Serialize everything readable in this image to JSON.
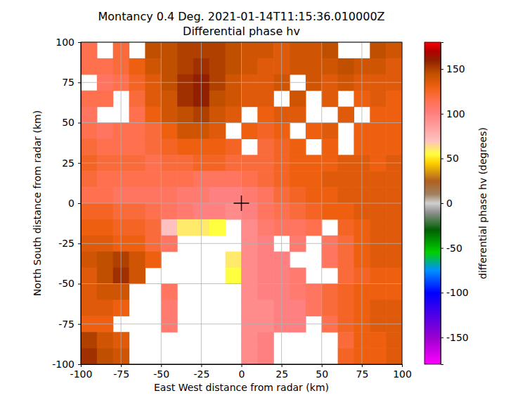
{
  "chart_data": {
    "type": "heatmap",
    "title": "Montancy 0.4 Deg. 2021-01-14T11:15:36.010000Z",
    "subtitle": "Differential phase hv",
    "x_label": "East West distance from radar (km)",
    "y_label": "North South distance from radar (km)",
    "xlim": [
      -100,
      100
    ],
    "ylim": [
      -100,
      100
    ],
    "xticks": [
      -100,
      -75,
      -50,
      -25,
      0,
      25,
      50,
      75,
      100
    ],
    "yticks": [
      -100,
      -75,
      -50,
      -25,
      0,
      25,
      50,
      75,
      100
    ],
    "grid": true,
    "radar_location": [
      0,
      0
    ],
    "x": [
      -95,
      -85,
      -75,
      -65,
      -55,
      -45,
      -35,
      -25,
      -15,
      -5,
      5,
      15,
      25,
      35,
      45,
      55,
      65,
      75,
      85,
      95
    ],
    "y": [
      95,
      85,
      75,
      65,
      55,
      45,
      35,
      25,
      15,
      5,
      -5,
      -15,
      -25,
      -35,
      -45,
      -55,
      -65,
      -75,
      -85,
      -95
    ],
    "values": [
      [
        115,
        null,
        120,
        null,
        145,
        145,
        150,
        150,
        150,
        145,
        140,
        140,
        135,
        140,
        140,
        145,
        null,
        null,
        145,
        140
      ],
      [
        115,
        115,
        120,
        130,
        140,
        145,
        150,
        155,
        150,
        145,
        140,
        135,
        135,
        140,
        140,
        140,
        145,
        140,
        140,
        135
      ],
      [
        null,
        110,
        115,
        125,
        135,
        145,
        155,
        160,
        150,
        140,
        135,
        135,
        140,
        null,
        140,
        135,
        140,
        135,
        135,
        135
      ],
      [
        115,
        115,
        null,
        120,
        135,
        140,
        155,
        160,
        145,
        140,
        135,
        135,
        null,
        140,
        null,
        135,
        null,
        130,
        135,
        130
      ],
      [
        110,
        null,
        null,
        115,
        130,
        140,
        145,
        150,
        140,
        135,
        null,
        130,
        135,
        135,
        null,
        null,
        135,
        null,
        130,
        130
      ],
      [
        115,
        110,
        115,
        115,
        120,
        130,
        140,
        140,
        135,
        null,
        130,
        125,
        130,
        null,
        130,
        135,
        null,
        130,
        130,
        130
      ],
      [
        120,
        115,
        115,
        115,
        120,
        125,
        130,
        130,
        130,
        125,
        null,
        120,
        125,
        130,
        null,
        130,
        null,
        130,
        130,
        130
      ],
      [
        125,
        120,
        120,
        120,
        115,
        120,
        120,
        125,
        125,
        120,
        120,
        120,
        125,
        130,
        130,
        130,
        135,
        135,
        130,
        135
      ],
      [
        120,
        115,
        115,
        115,
        115,
        115,
        115,
        110,
        110,
        110,
        115,
        120,
        125,
        130,
        130,
        135,
        135,
        135,
        135,
        135
      ],
      [
        115,
        115,
        110,
        110,
        110,
        110,
        105,
        105,
        100,
        100,
        105,
        110,
        120,
        125,
        130,
        130,
        135,
        135,
        135,
        135
      ],
      [
        125,
        125,
        120,
        120,
        115,
        110,
        105,
        100,
        100,
        95,
        100,
        110,
        115,
        120,
        125,
        130,
        130,
        135,
        135,
        135
      ],
      [
        130,
        130,
        125,
        125,
        120,
        70,
        60,
        60,
        55,
        null,
        95,
        105,
        110,
        110,
        115,
        null,
        125,
        130,
        135,
        135
      ],
      [
        135,
        135,
        130,
        130,
        120,
        110,
        null,
        null,
        null,
        null,
        95,
        100,
        null,
        105,
        null,
        110,
        120,
        130,
        135,
        135
      ],
      [
        140,
        145,
        150,
        140,
        130,
        null,
        null,
        null,
        null,
        60,
        95,
        100,
        100,
        null,
        null,
        110,
        120,
        130,
        135,
        135
      ],
      [
        135,
        145,
        155,
        140,
        null,
        null,
        null,
        null,
        null,
        55,
        95,
        100,
        100,
        105,
        null,
        null,
        120,
        125,
        130,
        130
      ],
      [
        135,
        140,
        140,
        null,
        null,
        110,
        null,
        null,
        null,
        null,
        95,
        100,
        100,
        105,
        110,
        120,
        125,
        130,
        130,
        130
      ],
      [
        135,
        135,
        130,
        null,
        null,
        105,
        null,
        null,
        null,
        null,
        95,
        95,
        100,
        100,
        110,
        120,
        125,
        130,
        135,
        135
      ],
      [
        130,
        130,
        null,
        null,
        null,
        105,
        null,
        null,
        null,
        null,
        95,
        95,
        100,
        100,
        null,
        115,
        125,
        130,
        135,
        135
      ],
      [
        150,
        140,
        135,
        null,
        null,
        null,
        null,
        null,
        null,
        null,
        95,
        100,
        null,
        null,
        null,
        null,
        120,
        130,
        130,
        135
      ],
      [
        155,
        145,
        140,
        null,
        null,
        null,
        null,
        null,
        null,
        null,
        95,
        100,
        null,
        null,
        null,
        null,
        125,
        130,
        130,
        135
      ]
    ],
    "colorbar_label": "differential phase hv (degrees)",
    "colorbar_range": [
      -180,
      180
    ],
    "colorbar_ticks": [
      -150,
      -100,
      -50,
      0,
      50,
      100,
      150
    ]
  }
}
